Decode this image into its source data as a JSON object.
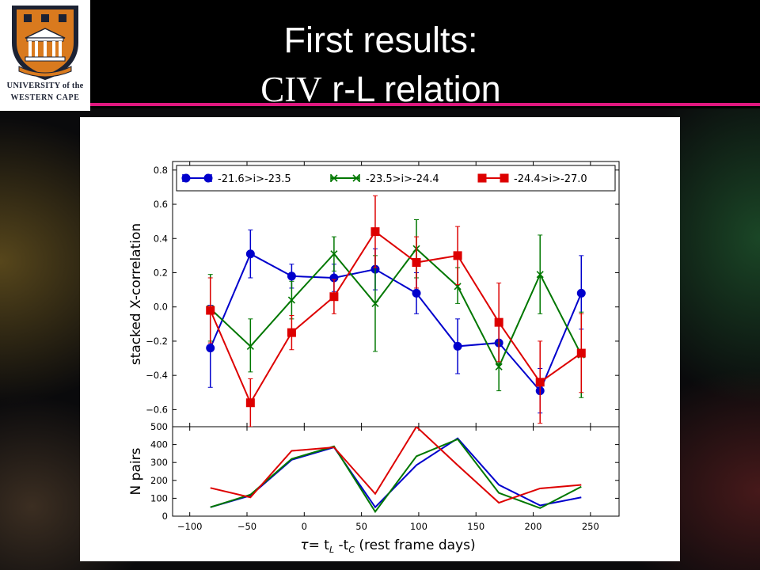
{
  "slide": {
    "title_line1": "First results:",
    "title_line2_civ": "CIV",
    "title_line2_rest": " r-L relation"
  },
  "logo": {
    "line1": "UNIVERSITY of the",
    "line2": "WESTERN CAPE",
    "icon": "university-crest-icon"
  },
  "colors": {
    "accent_line": "#e0177f",
    "series_blue": "#0000cc",
    "series_green": "#007700",
    "series_red": "#dd0000"
  },
  "chart_data": [
    {
      "type": "line",
      "panel": "top",
      "ylabel": "stacked X-correlation",
      "ylim": [
        -0.7,
        0.85
      ],
      "yticks": [
        "0.8",
        "0.6",
        "0.4",
        "0.2",
        "0.0",
        "−0.2",
        "−0.4",
        "−0.6"
      ],
      "ytick_values": [
        0.8,
        0.6,
        0.4,
        0.2,
        0.0,
        -0.2,
        -0.4,
        -0.6
      ],
      "legend_position": "top",
      "x": [
        -82,
        -47,
        -11,
        26,
        62,
        98,
        134,
        170,
        206,
        242
      ],
      "series": [
        {
          "name": "-21.6>i>-23.5",
          "marker": "circle",
          "color": "#0000cc",
          "values": [
            -0.24,
            0.31,
            0.18,
            0.17,
            0.22,
            0.08,
            -0.23,
            -0.21,
            -0.49,
            0.08
          ],
          "err_low": [
            -0.47,
            0.17,
            0.11,
            0.09,
            0.1,
            -0.04,
            -0.39,
            -0.34,
            -0.62,
            -0.13
          ],
          "err_high": [
            0.01,
            0.45,
            0.25,
            0.25,
            0.34,
            0.2,
            -0.07,
            -0.08,
            -0.36,
            0.3
          ]
        },
        {
          "name": "-23.5>i>-24.4",
          "marker": "x",
          "color": "#007700",
          "values": [
            -0.01,
            -0.23,
            0.04,
            0.31,
            0.02,
            0.34,
            0.12,
            -0.35,
            0.19,
            -0.28
          ],
          "err_low": [
            -0.2,
            -0.38,
            -0.07,
            0.21,
            -0.26,
            0.17,
            0.02,
            -0.49,
            -0.04,
            -0.53
          ],
          "err_high": [
            0.19,
            -0.07,
            0.15,
            0.41,
            0.3,
            0.51,
            0.23,
            -0.21,
            0.42,
            -0.03
          ]
        },
        {
          "name": "-24.4>i>-27.0",
          "marker": "square",
          "color": "#dd0000",
          "values": [
            -0.02,
            -0.56,
            -0.15,
            0.06,
            0.44,
            0.26,
            0.3,
            -0.09,
            -0.44,
            -0.27
          ],
          "err_low": [
            -0.21,
            -0.7,
            -0.25,
            -0.04,
            0.23,
            0.11,
            0.13,
            -0.32,
            -0.68,
            -0.5
          ],
          "err_high": [
            0.17,
            -0.42,
            -0.05,
            0.16,
            0.65,
            0.41,
            0.47,
            0.14,
            -0.2,
            -0.04
          ]
        }
      ]
    },
    {
      "type": "line",
      "panel": "bottom",
      "ylabel": "N pairs",
      "xlabel_tau": "τ",
      "xlabel_eq": "= t",
      "xlabel_sub_l": "L",
      "xlabel_mid": " -t",
      "xlabel_sub_c": "C",
      "xlabel_rest": "  (rest frame days)",
      "xlim": [
        -115,
        275
      ],
      "ylim": [
        0,
        500
      ],
      "xticks": [
        "−100",
        "−50",
        "0",
        "50",
        "100",
        "150",
        "200",
        "250"
      ],
      "xtick_values": [
        -100,
        -50,
        0,
        50,
        100,
        150,
        200,
        250
      ],
      "yticks": [
        "500",
        "400",
        "300",
        "200",
        "100",
        "0"
      ],
      "ytick_values": [
        500,
        400,
        300,
        200,
        100,
        0
      ],
      "x": [
        -82,
        -47,
        -11,
        26,
        62,
        98,
        134,
        170,
        206,
        242
      ],
      "series": [
        {
          "color": "#0000cc",
          "values": [
            50,
            115,
            315,
            385,
            50,
            285,
            435,
            175,
            60,
            105
          ]
        },
        {
          "color": "#007700",
          "values": [
            50,
            120,
            320,
            390,
            25,
            335,
            430,
            130,
            45,
            165
          ]
        },
        {
          "color": "#dd0000",
          "values": [
            158,
            105,
            365,
            385,
            125,
            500,
            285,
            75,
            155,
            175
          ]
        }
      ]
    }
  ]
}
